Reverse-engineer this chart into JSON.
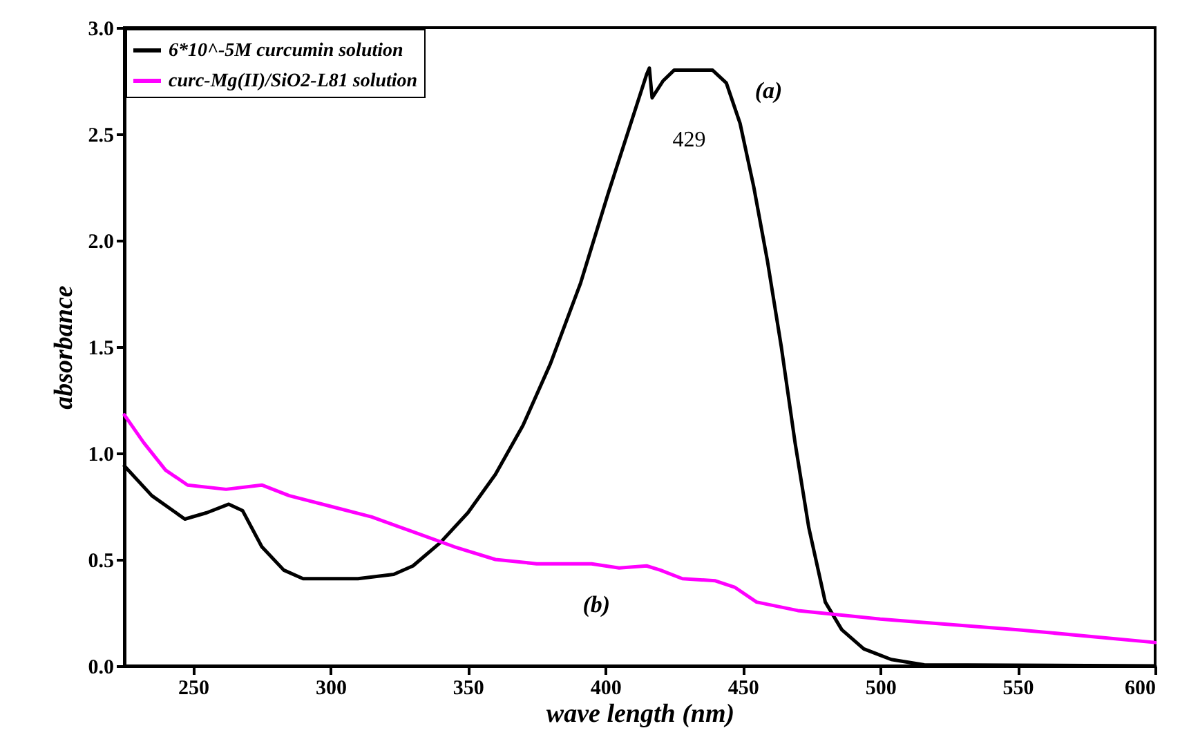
{
  "chart_data": {
    "type": "line",
    "xlabel": "wave length (nm)",
    "ylabel": "absorbance",
    "xlim": [
      225,
      600
    ],
    "xticks": [
      250,
      300,
      350,
      400,
      450,
      500,
      550,
      600
    ],
    "ylim": [
      0,
      3
    ],
    "yticks": [
      {
        "value": 0,
        "label": "0.0"
      },
      {
        "value": 0.5,
        "label": "0.5"
      },
      {
        "value": 1,
        "label": "1.0"
      },
      {
        "value": 1.5,
        "label": "1.5"
      },
      {
        "value": 2,
        "label": "2.0"
      },
      {
        "value": 2.5,
        "label": "2.5"
      },
      {
        "value": 3,
        "label": "3.0"
      }
    ],
    "legend": "top left",
    "grid": false,
    "series": [
      {
        "name": "6*10^-5M curcumin solution",
        "color": "#000000",
        "x": [
          225,
          235,
          247,
          255,
          263,
          268,
          275,
          283,
          290,
          310,
          323,
          330,
          340,
          350,
          360,
          370,
          380,
          391,
          401,
          408,
          415,
          416,
          417,
          421,
          425,
          439,
          444,
          449,
          454,
          459,
          464,
          469,
          474,
          480,
          486,
          494,
          504,
          516,
          600
        ],
        "values": [
          0.94,
          0.8,
          0.69,
          0.72,
          0.76,
          0.73,
          0.56,
          0.45,
          0.41,
          0.41,
          0.43,
          0.47,
          0.58,
          0.72,
          0.9,
          1.13,
          1.42,
          1.8,
          2.22,
          2.5,
          2.78,
          2.81,
          2.67,
          2.75,
          2.8,
          2.8,
          2.74,
          2.55,
          2.25,
          1.9,
          1.5,
          1.05,
          0.65,
          0.3,
          0.17,
          0.08,
          0.03,
          0.005,
          0
        ]
      },
      {
        "name": "curc-Mg(II)/SiO2-L81 solution",
        "color": "#ff00ff",
        "x": [
          225,
          232,
          240,
          248,
          262,
          275,
          285,
          300,
          315,
          330,
          345,
          360,
          375,
          395,
          405,
          415,
          420,
          428,
          440,
          447,
          455,
          470,
          500,
          550,
          600
        ],
        "values": [
          1.18,
          1.05,
          0.92,
          0.85,
          0.83,
          0.85,
          0.8,
          0.75,
          0.7,
          0.63,
          0.56,
          0.5,
          0.48,
          0.48,
          0.46,
          0.47,
          0.45,
          0.41,
          0.4,
          0.37,
          0.3,
          0.26,
          0.22,
          0.17,
          0.11
        ]
      }
    ],
    "annotations": [
      "(a)",
      "429",
      "(b)"
    ]
  }
}
